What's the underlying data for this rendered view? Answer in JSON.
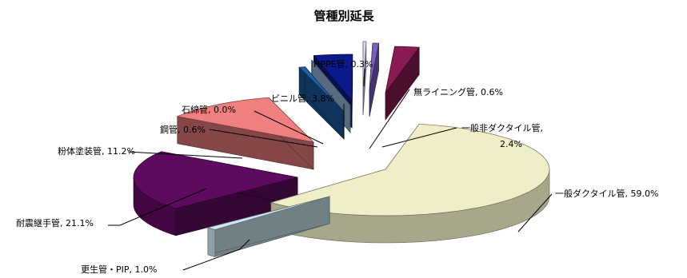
{
  "chart_data": {
    "type": "pie",
    "title": "管種別延長",
    "slices": [
      {
        "label": "HPPE管, 0.3%",
        "value": 0.3,
        "color": "#d9d9f2"
      },
      {
        "label": "無ライニング管, 0.6%",
        "value": 0.6,
        "color": "#7a5fbf"
      },
      {
        "label": "一般非ダクタイル管, 2.4%",
        "value": 2.4,
        "color": "#8a1a52"
      },
      {
        "label": "一般ダクタイル管, 59.0%",
        "value": 59.0,
        "color": "#efeec6"
      },
      {
        "label": "更生管・PIP, 1.0%",
        "value": 1.0,
        "color": "#cde8f0"
      },
      {
        "label": "耐震継手管, 21.1%",
        "value": 21.1,
        "color": "#5e0a5e"
      },
      {
        "label": "粉体塗装管, 11.2%",
        "value": 11.2,
        "color": "#f08080"
      },
      {
        "label": "鋼管, 0.6%",
        "value": 0.6,
        "color": "#1f5fa8"
      },
      {
        "label": "石綿管, 0.0%",
        "value": 0.0,
        "color": "#9fc3e8"
      },
      {
        "label": "ビニル管, 3.8%",
        "value": 3.8,
        "color": "#0a1a8a"
      }
    ],
    "label_lines": {
      "dactile_line2": "2.4%",
      "dactile_line1": "一般非ダクタイル管,"
    }
  }
}
